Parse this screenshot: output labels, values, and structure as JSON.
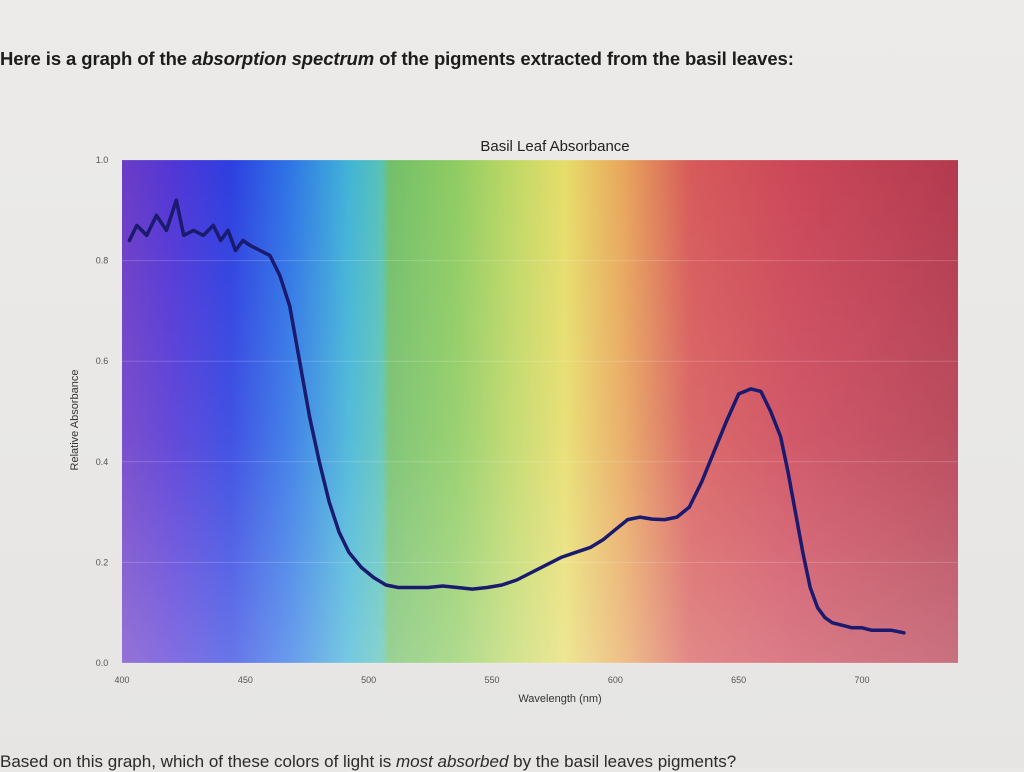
{
  "page": {
    "intro_prefix": "Here is a graph of the ",
    "intro_emphasis": "absorption spectrum",
    "intro_suffix": " of the pigments extracted from the basil leaves:",
    "question_prefix": "Based on this graph, which of these colors of light is ",
    "question_emphasis": "most absorbed",
    "question_suffix": " by the basil leaves pigments?"
  },
  "chart_data": {
    "type": "line",
    "title": "Basil Leaf Absorbance",
    "xlabel": "Wavelength (nm)",
    "ylabel": "Relative Absorbance",
    "xlim": [
      400,
      725
    ],
    "ylim": [
      0.0,
      1.0
    ],
    "x_ticks": [
      400,
      450,
      500,
      550,
      600,
      650,
      700
    ],
    "x_tick_labels": [
      "400",
      "450",
      "500",
      "550",
      "600",
      "650",
      "700"
    ],
    "y_ticks": [
      0.0,
      0.2,
      0.4,
      0.6,
      0.8,
      1.0
    ],
    "y_tick_labels": [
      "0.0",
      "0.2",
      "0.4",
      "0.6",
      "0.8",
      "1.0"
    ],
    "background": "visible light spectrum gradient",
    "line_color": "#1a1a6e",
    "series": [
      {
        "x": [
          403,
          406,
          410,
          414,
          418,
          422,
          425,
          429,
          433,
          437,
          440,
          443,
          446,
          449,
          452,
          456,
          460,
          464,
          468,
          472,
          476,
          480,
          484,
          488,
          492,
          497,
          502,
          507,
          512,
          518,
          524,
          530,
          536,
          542,
          548,
          554,
          560,
          566,
          572,
          578,
          584,
          590,
          595,
          600,
          605,
          610,
          615,
          620,
          625,
          630,
          635,
          640,
          645,
          650,
          655,
          659,
          663,
          667,
          670,
          673,
          676,
          679,
          682,
          685,
          688,
          692,
          696,
          700,
          704,
          708,
          712,
          717
        ],
        "y": [
          0.84,
          0.87,
          0.85,
          0.89,
          0.86,
          0.92,
          0.85,
          0.86,
          0.85,
          0.87,
          0.84,
          0.86,
          0.82,
          0.84,
          0.83,
          0.82,
          0.81,
          0.77,
          0.71,
          0.6,
          0.49,
          0.4,
          0.32,
          0.26,
          0.22,
          0.19,
          0.17,
          0.155,
          0.15,
          0.15,
          0.15,
          0.153,
          0.15,
          0.147,
          0.15,
          0.155,
          0.165,
          0.18,
          0.195,
          0.21,
          0.22,
          0.23,
          0.245,
          0.265,
          0.285,
          0.29,
          0.286,
          0.285,
          0.29,
          0.31,
          0.36,
          0.42,
          0.48,
          0.535,
          0.545,
          0.54,
          0.5,
          0.45,
          0.38,
          0.3,
          0.22,
          0.15,
          0.11,
          0.09,
          0.08,
          0.075,
          0.07,
          0.07,
          0.065,
          0.065,
          0.065,
          0.06
        ]
      }
    ]
  }
}
